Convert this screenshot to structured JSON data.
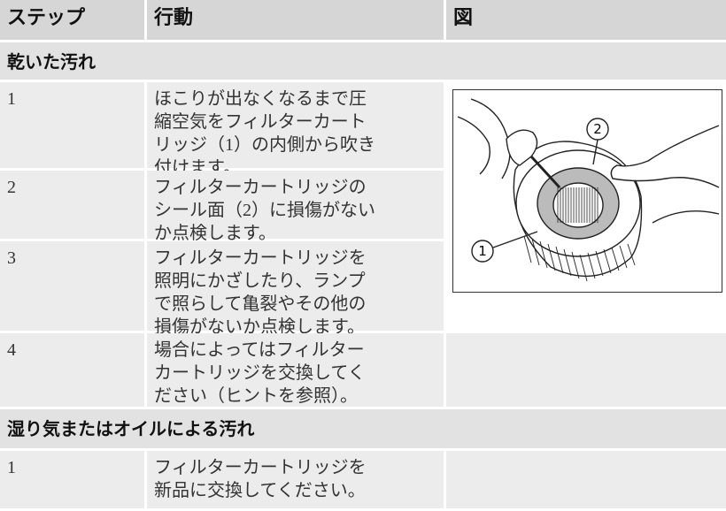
{
  "table": {
    "header": [
      "ステップ",
      "行動",
      "図"
    ],
    "sections": [
      {
        "title": "乾いた汚れ",
        "rows": [
          {
            "step": "1",
            "action": [
              "ほこりが出なくなるまで圧",
              "縮空気をフィルターカート",
              "リッジ（1）の内側から吹き",
              "付けます。"
            ]
          },
          {
            "step": "2",
            "action": [
              "フィルターカートリッジの",
              "シール面（2）に損傷がない",
              "か点検します。"
            ]
          },
          {
            "step": "3",
            "action": [
              "フィルターカートリッジを",
              "照明にかざしたり、ランプ",
              "で照らして亀裂やその他の",
              "損傷がないか点検します。"
            ]
          },
          {
            "step": "4",
            "action": [
              "場合によってはフィルター",
              "カートリッジを交換してく",
              "ださい（ヒントを参照）。"
            ]
          }
        ]
      },
      {
        "title": "湿り気またはオイルによる汚れ",
        "rows": [
          {
            "step": "1",
            "action": [
              "フィルターカートリッジを",
              "新品に交換してください。"
            ]
          }
        ]
      }
    ]
  },
  "figure": {
    "callouts": [
      "2",
      "1"
    ]
  }
}
